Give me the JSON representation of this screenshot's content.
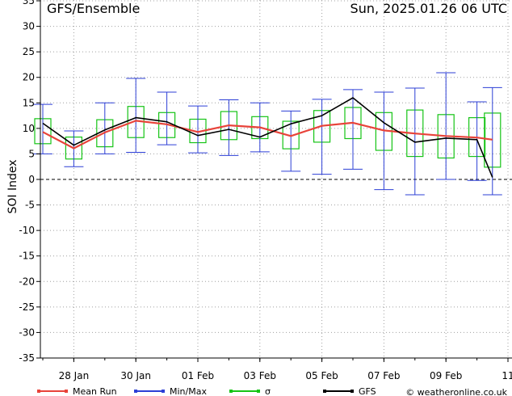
{
  "header": {
    "left": "GFS/Ensemble",
    "right": "Sun, 2025.01.26   06 UTC"
  },
  "chart_data": {
    "type": "line",
    "ylabel": "SOI Index",
    "ylim": [
      -35,
      35
    ],
    "yticks": [
      35,
      30,
      25,
      20,
      15,
      10,
      5,
      0,
      -5,
      -10,
      -15,
      -20,
      -25,
      -30,
      -35
    ],
    "xlim": [
      -0.5,
      14.0
    ],
    "xticks": [
      {
        "x": 0.5,
        "label": "28 Jan"
      },
      {
        "x": 2.5,
        "label": "30 Jan"
      },
      {
        "x": 4.5,
        "label": "01 Feb"
      },
      {
        "x": 6.5,
        "label": "03 Feb"
      },
      {
        "x": 8.5,
        "label": "05 Feb"
      },
      {
        "x": 10.5,
        "label": "07 Feb"
      },
      {
        "x": 12.5,
        "label": "09 Feb"
      },
      {
        "x": 14.5,
        "label": "11"
      }
    ],
    "grid": true,
    "zero_line": true,
    "series": [
      {
        "name": "Mean Run",
        "color": "#e8433a",
        "x": [
          -0.5,
          0.5,
          1.5,
          2.5,
          3.5,
          4.5,
          5.5,
          6.5,
          7.5,
          8.5,
          9.5,
          10.5,
          11.5,
          12.5,
          13.5,
          14.0
        ],
        "values": [
          9.3,
          6.1,
          9.2,
          11.5,
          10.8,
          9.3,
          10.6,
          10.2,
          8.5,
          10.5,
          11.1,
          9.6,
          9.0,
          8.5,
          8.2,
          7.8
        ]
      },
      {
        "name": "GFS",
        "color": "#000000",
        "x": [
          -0.5,
          0.5,
          1.5,
          2.5,
          3.5,
          4.5,
          5.5,
          6.5,
          7.5,
          8.5,
          9.5,
          10.5,
          11.5,
          12.5,
          13.5,
          14.0
        ],
        "values": [
          11.0,
          6.7,
          9.7,
          12.1,
          11.3,
          8.6,
          9.8,
          8.3,
          10.9,
          12.5,
          16.0,
          11.1,
          7.3,
          8.1,
          7.8,
          0.4
        ]
      }
    ],
    "minmax": {
      "name": "Min/Max",
      "color": "#2c3fd6",
      "x": [
        -0.5,
        0.5,
        1.5,
        2.5,
        3.5,
        4.5,
        5.5,
        6.5,
        7.5,
        8.5,
        9.5,
        10.5,
        11.5,
        12.5,
        13.5,
        14.0
      ],
      "min": [
        5.0,
        2.5,
        5.0,
        5.3,
        6.8,
        5.2,
        4.7,
        5.4,
        1.6,
        1.0,
        2.0,
        -2.0,
        -3.0,
        0.0,
        -0.2,
        -3.0
      ],
      "max": [
        14.7,
        9.5,
        15.0,
        19.8,
        17.1,
        14.4,
        15.6,
        15.0,
        13.4,
        15.7,
        17.6,
        17.1,
        17.9,
        20.9,
        15.2,
        18.0
      ]
    },
    "sigma": {
      "name": "σ",
      "color": "#16c416",
      "x": [
        -0.5,
        0.5,
        1.5,
        2.5,
        3.5,
        4.5,
        5.5,
        6.5,
        7.5,
        8.5,
        9.5,
        10.5,
        11.5,
        12.5,
        13.5,
        14.0
      ],
      "low": [
        7.0,
        4.0,
        6.4,
        8.2,
        8.2,
        7.2,
        7.8,
        8.0,
        6.0,
        7.3,
        8.0,
        5.7,
        4.5,
        4.2,
        4.5,
        2.4
      ],
      "high": [
        11.9,
        8.3,
        11.7,
        14.3,
        13.1,
        11.8,
        13.3,
        12.3,
        11.4,
        13.5,
        14.1,
        13.1,
        13.6,
        12.7,
        12.1,
        13.0
      ]
    }
  },
  "legend": [
    {
      "label": "Mean Run",
      "color": "#e8433a"
    },
    {
      "label": "Min/Max",
      "color": "#2c3fd6"
    },
    {
      "label": "σ",
      "color": "#16c416"
    },
    {
      "label": "GFS",
      "color": "#000000"
    }
  ],
  "credit": "© weatheronline.co.uk"
}
